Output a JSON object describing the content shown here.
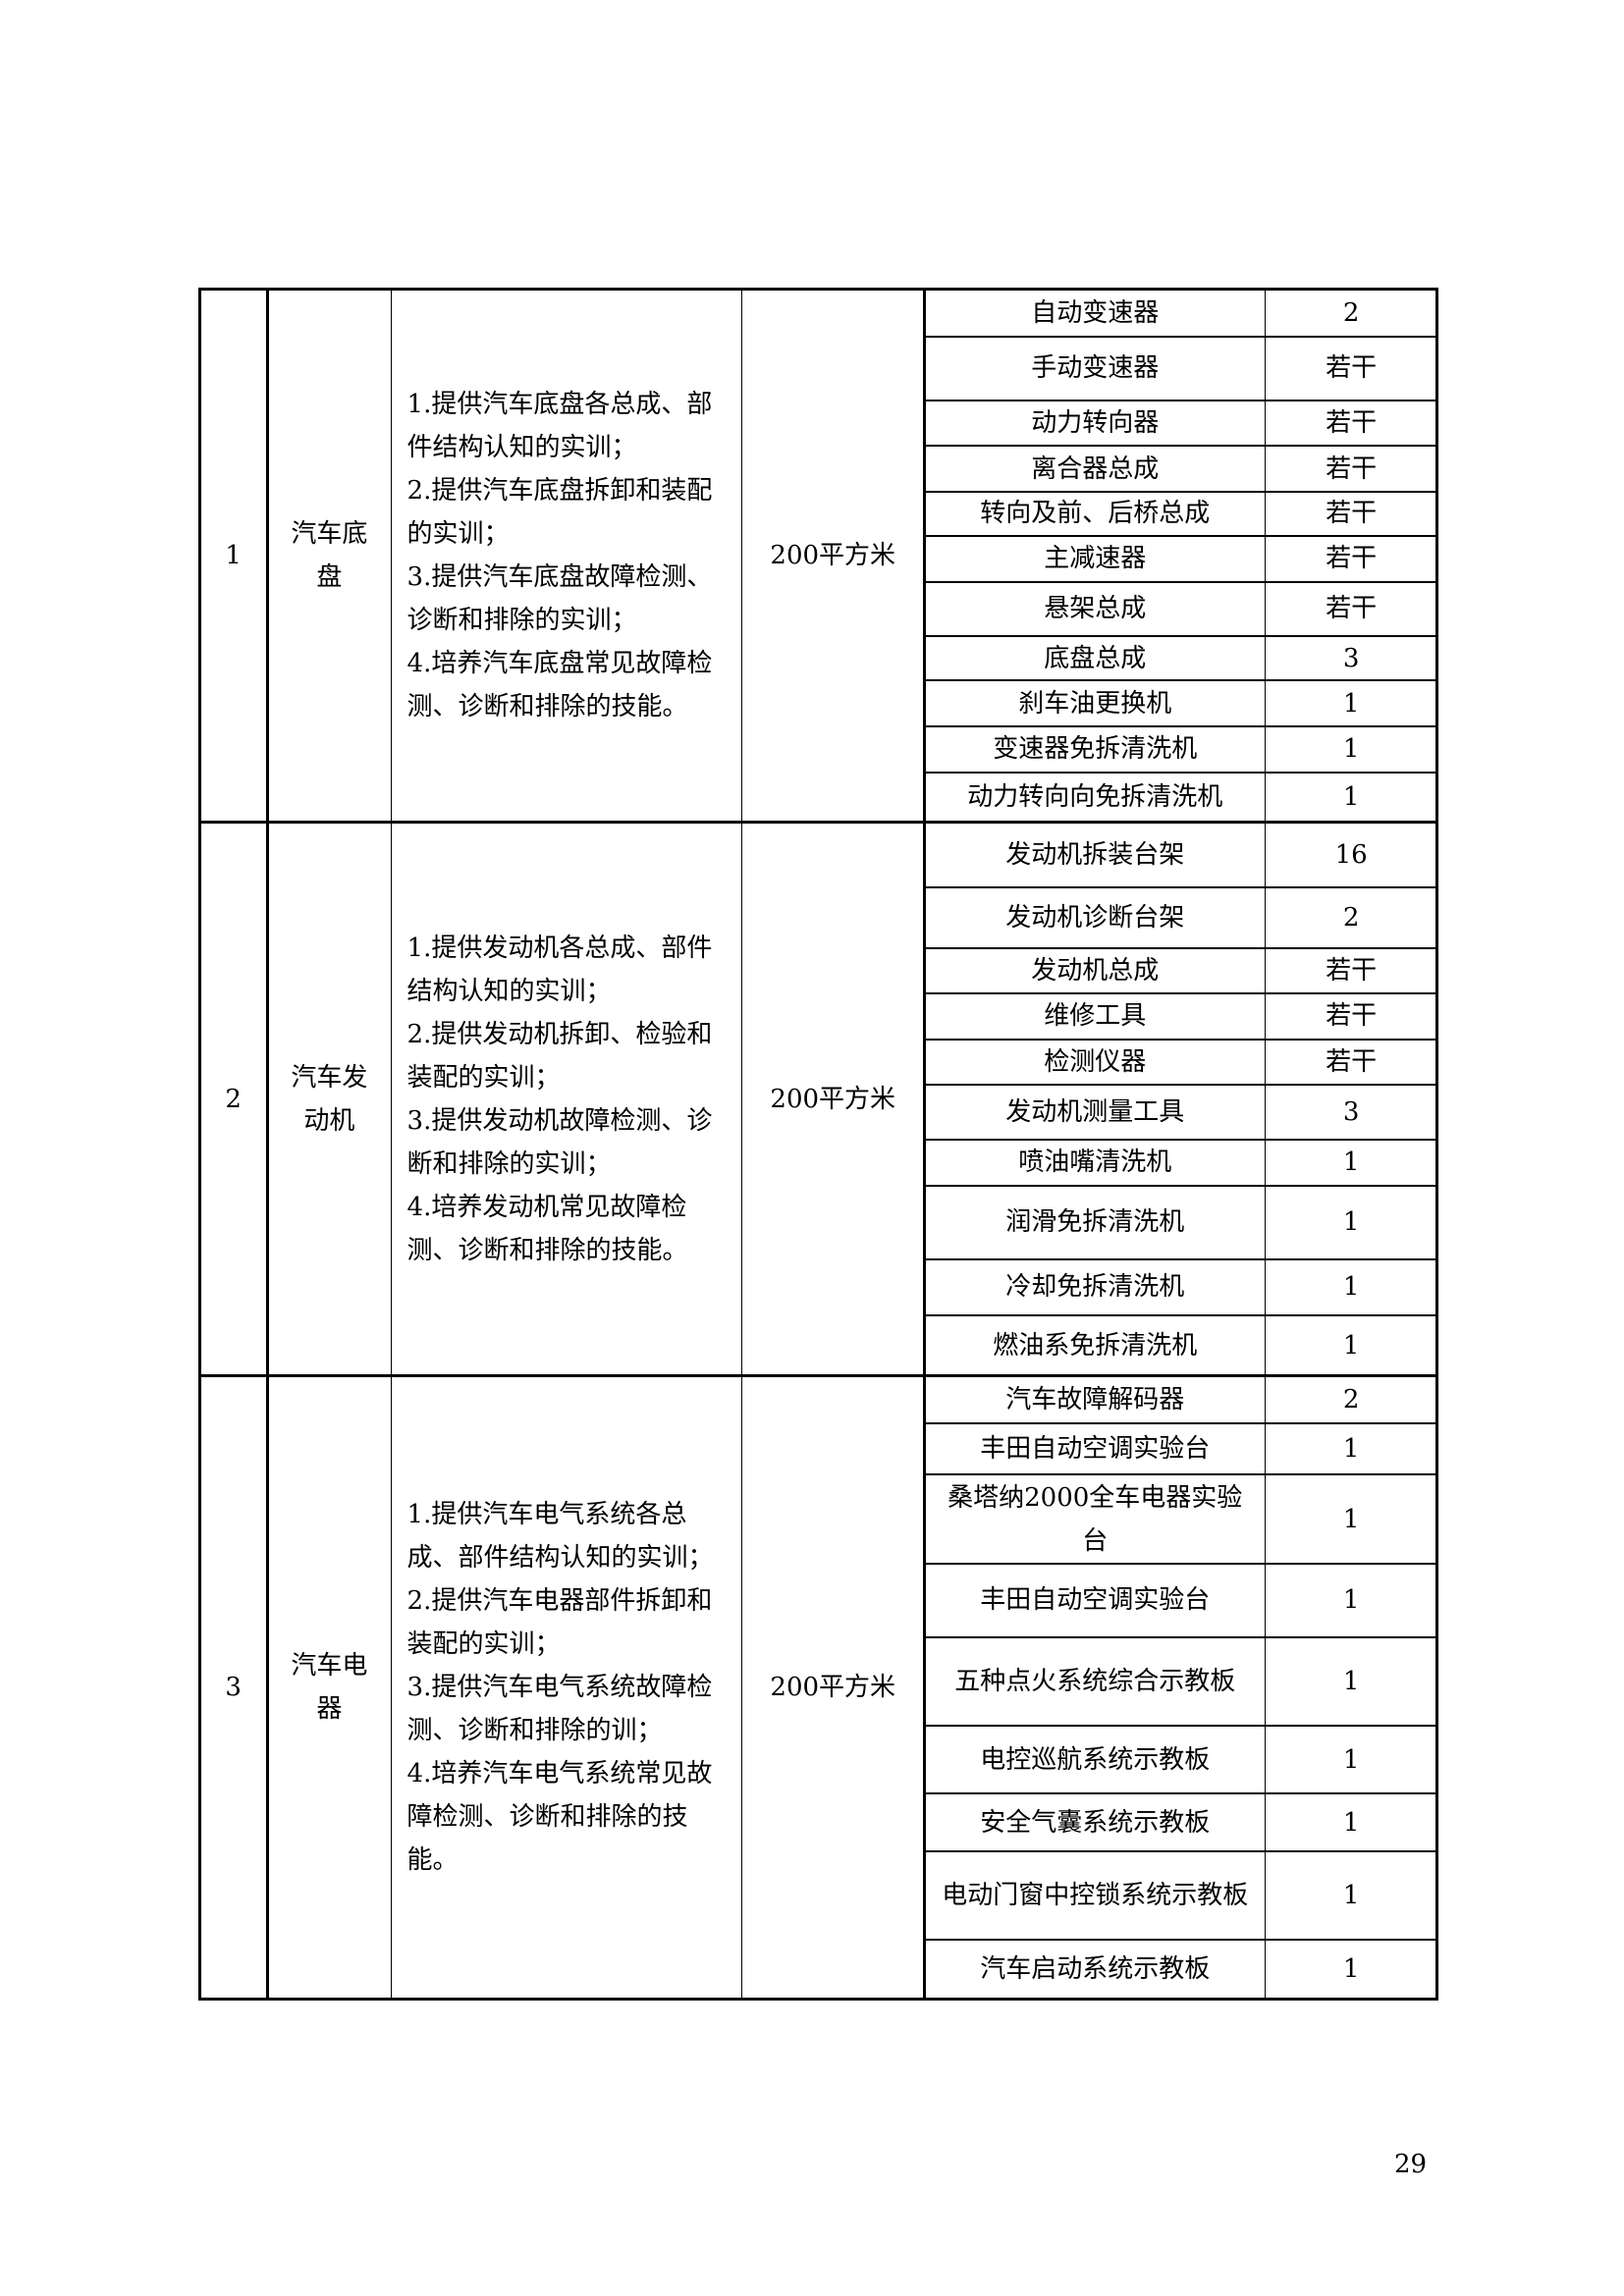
{
  "sections": [
    {
      "no": "1",
      "name": "汽车底盘",
      "description": "1.提供汽车底盘各总成、部件结构认知的实训；\n2.提供汽车底盘拆卸和装配的实训；\n3.提供汽车底盘故障检测、诊断和排除的实训；\n4.培养汽车底盘常见故障检测、诊断和排除的技能。",
      "area": "200平方米",
      "equipment": [
        {
          "name": "自动变速器",
          "qty": "2"
        },
        {
          "name": "手动变速器",
          "qty": "若干"
        },
        {
          "name": "动力转向器",
          "qty": "若干"
        },
        {
          "name": "离合器总成",
          "qty": "若干"
        },
        {
          "name": "转向及前、后桥总成",
          "qty": "若干"
        },
        {
          "name": "主减速器",
          "qty": "若干"
        },
        {
          "name": "悬架总成",
          "qty": "若干"
        },
        {
          "name": "底盘总成",
          "qty": "3"
        },
        {
          "name": "刹车油更换机",
          "qty": "1"
        },
        {
          "name": "变速器免拆清洗机",
          "qty": "1"
        },
        {
          "name": "动力转向向免拆清洗机",
          "qty": "1"
        }
      ]
    },
    {
      "no": "2",
      "name": "汽车发动机",
      "description": "1.提供发动机各总成、部件结构认知的实训；\n2.提供发动机拆卸、检验和装配的实训；\n3.提供发动机故障检测、诊断和排除的实训；\n4.培养发动机常见故障检测、诊断和排除的技能。",
      "area": "200平方米",
      "equipment": [
        {
          "name": "发动机拆装台架",
          "qty": "16"
        },
        {
          "name": "发动机诊断台架",
          "qty": "2"
        },
        {
          "name": "发动机总成",
          "qty": "若干"
        },
        {
          "name": "维修工具",
          "qty": "若干"
        },
        {
          "name": "检测仪器",
          "qty": "若干"
        },
        {
          "name": "发动机测量工具",
          "qty": "3"
        },
        {
          "name": "喷油嘴清洗机",
          "qty": "1"
        },
        {
          "name": "润滑免拆清洗机",
          "qty": "1"
        },
        {
          "name": "冷却免拆清洗机",
          "qty": "1"
        },
        {
          "name": "燃油系免拆清洗机",
          "qty": "1"
        }
      ]
    },
    {
      "no": "3",
      "name": "汽车电器",
      "description": "1.提供汽车电气系统各总成、部件结构认知的实训；\n2.提供汽车电器部件拆卸和装配的实训；\n3.提供汽车电气系统故障检测、诊断和排除的训；\n4.培养汽车电气系统常见故障检测、诊断和排除的技能。",
      "area": "200平方米",
      "equipment": [
        {
          "name": "汽车故障解码器",
          "qty": "2"
        },
        {
          "name": "丰田自动空调实验台",
          "qty": "1"
        },
        {
          "name": "桑塔纳2000全车电器实验台",
          "qty": "1"
        },
        {
          "name": "丰田自动空调实验台",
          "qty": "1"
        },
        {
          "name": "五种点火系统综合示教板",
          "qty": "1"
        },
        {
          "name": "电控巡航系统示教板",
          "qty": "1"
        },
        {
          "name": "安全气囊系统示教板",
          "qty": "1"
        },
        {
          "name": "电动门窗中控锁系统示教板",
          "qty": "1"
        },
        {
          "name": "汽车启动系统示教板",
          "qty": "1"
        }
      ]
    }
  ],
  "page_number": "29"
}
